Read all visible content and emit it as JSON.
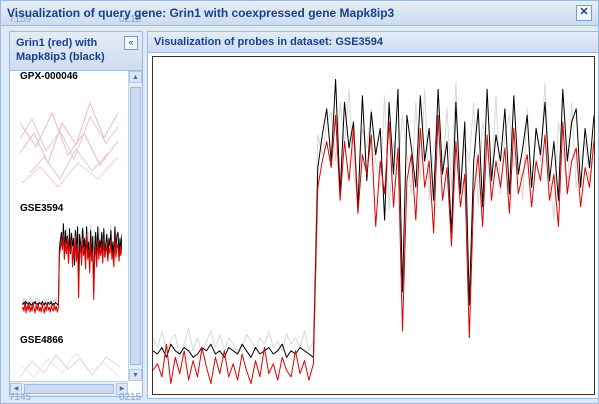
{
  "window": {
    "title": "Visualization of query gene: Grin1 with coexpressed gene Mapk8ip3",
    "close_label": "✕",
    "ghost_top": [
      "7159",
      "0215"
    ],
    "ghost_bottom": [
      "7145",
      "0215"
    ]
  },
  "left_panel": {
    "title": "Grin1 (red) with Mapk8ip3 (black)",
    "collapse_label": "«",
    "datasets": [
      {
        "label": "GPX-000046"
      },
      {
        "label": "GSE3594"
      },
      {
        "label": "GSE4866"
      }
    ]
  },
  "right_panel": {
    "title": "Visualization of probes in dataset: GSE3594"
  },
  "colors": {
    "query": "#e00000",
    "coexpressed": "#000000",
    "faded": "#d8d8d8"
  },
  "chart_data": {
    "type": "line",
    "title": "Visualization of probes in dataset: GSE3594",
    "xlim": [
      0,
      100
    ],
    "ylim": [
      0,
      100
    ],
    "series": [
      {
        "name": "Grin1 probe (light)",
        "color": "#d8d8d8",
        "values": [
          16,
          13,
          18,
          12,
          15,
          17,
          10,
          14,
          19,
          12,
          16,
          11,
          15,
          18,
          13,
          17,
          12,
          16,
          14,
          11,
          13,
          17,
          15,
          12,
          16,
          14,
          18,
          13,
          15,
          12,
          17,
          14,
          16,
          13,
          18,
          12,
          15,
          78,
          72,
          82,
          85,
          70,
          88,
          75,
          92,
          66,
          58,
          80,
          74,
          86,
          70,
          62,
          90,
          55,
          76,
          68,
          84,
          72,
          60,
          88,
          64,
          92,
          58,
          74,
          80,
          66,
          86,
          62,
          94,
          60,
          76,
          70,
          88,
          56,
          82,
          74,
          64,
          90,
          60,
          78,
          84,
          68,
          72,
          58,
          86,
          62,
          80,
          70,
          94,
          66,
          52,
          82,
          74,
          60,
          88,
          62,
          70,
          76,
          64,
          78
        ]
      },
      {
        "name": "Mapk8ip3 (black)",
        "color": "#000000",
        "values": [
          12,
          11,
          13,
          10,
          14,
          12,
          11,
          13,
          12,
          10,
          11,
          13,
          12,
          14,
          11,
          12,
          10,
          13,
          12,
          11,
          14,
          12,
          10,
          13,
          11,
          12,
          13,
          11,
          12,
          14,
          10,
          12,
          11,
          13,
          12,
          11,
          10,
          68,
          78,
          86,
          70,
          95,
          60,
          88,
          74,
          82,
          56,
          90,
          64,
          85,
          72,
          80,
          52,
          88,
          66,
          92,
          30,
          84,
          74,
          62,
          90,
          70,
          80,
          58,
          92,
          66,
          76,
          48,
          88,
          60,
          82,
          26,
          70,
          86,
          56,
          92,
          64,
          78,
          70,
          86,
          60,
          90,
          66,
          74,
          84,
          62,
          80,
          72,
          88,
          64,
          76,
          58,
          92,
          70,
          82,
          86,
          62,
          80,
          68,
          84
        ]
      },
      {
        "name": "Grin1 (red)",
        "color": "#e00000",
        "values": [
          6,
          8,
          4,
          14,
          2,
          10,
          5,
          12,
          3,
          9,
          4,
          13,
          7,
          2,
          10,
          5,
          12,
          4,
          8,
          3,
          11,
          6,
          2,
          9,
          4,
          13,
          5,
          8,
          3,
          10,
          6,
          4,
          12,
          5,
          9,
          3,
          8,
          62,
          70,
          76,
          68,
          84,
          58,
          76,
          64,
          80,
          54,
          72,
          66,
          78,
          50,
          70,
          60,
          82,
          56,
          74,
          18,
          64,
          72,
          52,
          80,
          62,
          70,
          48,
          84,
          58,
          68,
          44,
          76,
          56,
          66,
          16,
          60,
          72,
          50,
          78,
          58,
          70,
          62,
          74,
          54,
          80,
          60,
          66,
          72,
          56,
          70,
          64,
          78,
          58,
          66,
          50,
          82,
          60,
          70,
          74,
          56,
          68,
          62,
          76
        ]
      }
    ]
  }
}
